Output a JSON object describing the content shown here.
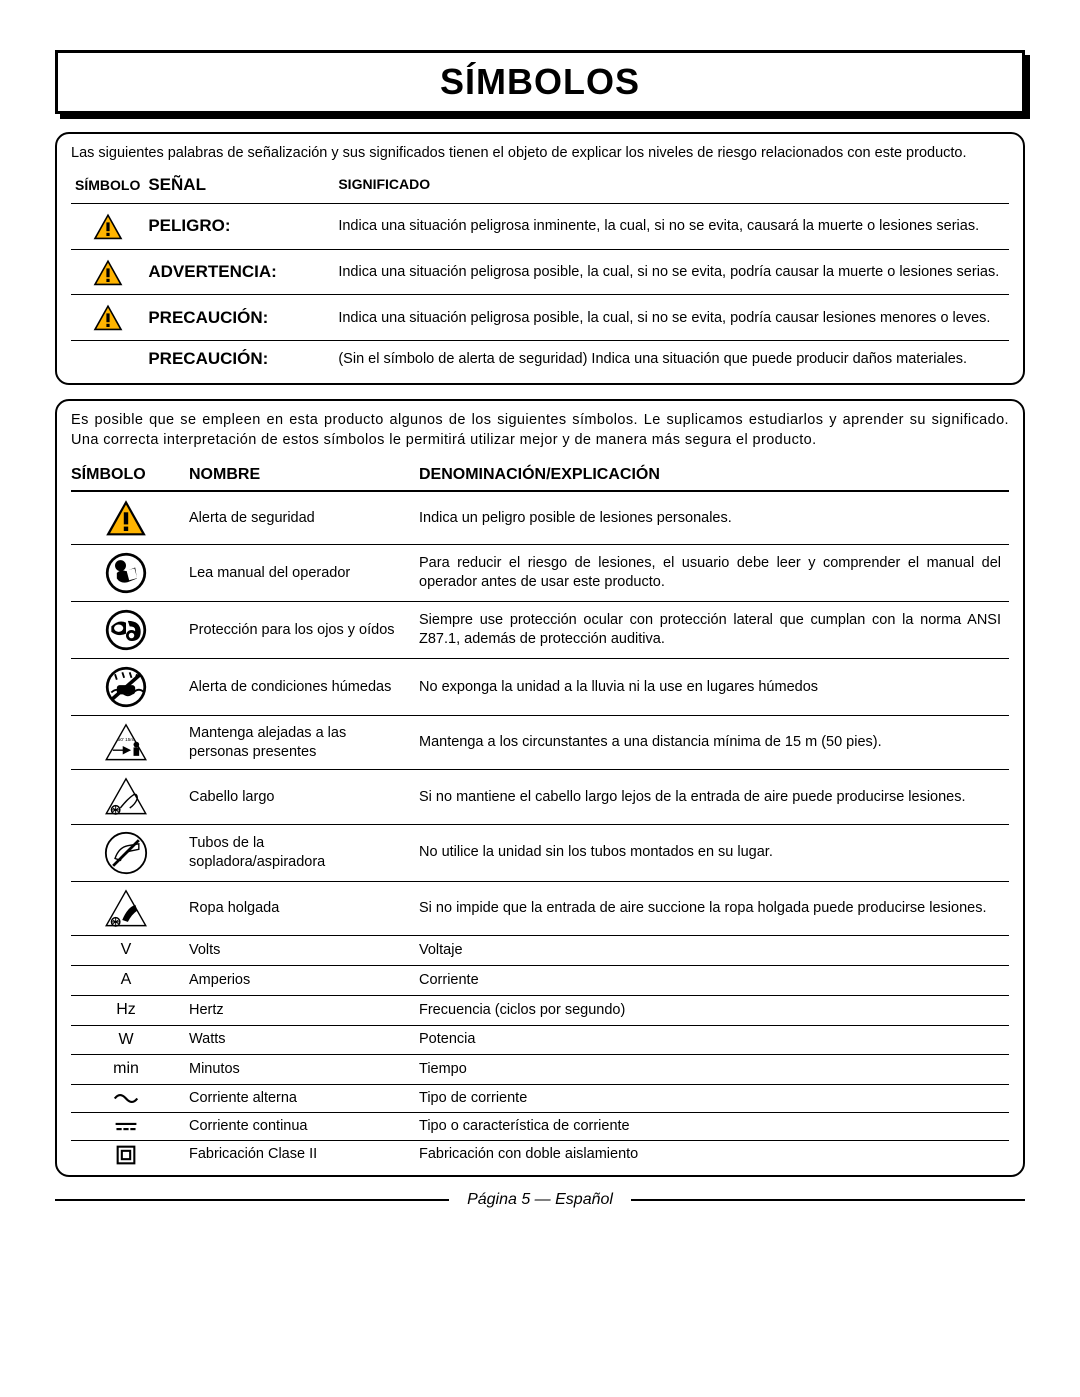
{
  "title": "SÍMBOLOS",
  "signal_box": {
    "intro": "Las siguientes palabras de señalización y sus significados tienen el objeto de explicar los niveles de riesgo relacionados con este producto.",
    "headers": {
      "symbol": "SÍMBOLO",
      "signal": "SEÑAL",
      "meaning": "SIGNIFICADO"
    },
    "rows": [
      {
        "has_icon": true,
        "signal": "PELIGRO:",
        "meaning": "Indica una situación peligrosa inminente, la cual, si no se evita, causará la muerte o lesiones serias."
      },
      {
        "has_icon": true,
        "signal": "ADVERTENCIA:",
        "meaning": "Indica una situación peligrosa posible, la cual, si no se evita, podría causar la muerte o lesiones serias."
      },
      {
        "has_icon": true,
        "signal": "PRECAUCIÓN:",
        "meaning": "Indica una situación peligrosa posible, la cual, si no se evita, podría causar lesiones menores o leves."
      },
      {
        "has_icon": false,
        "signal": "PRECAUCIÓN:",
        "meaning": "(Sin el símbolo de alerta de seguridad) Indica una situación que puede producir daños materiales."
      }
    ]
  },
  "symbols_box": {
    "intro": "Es posible que se empleen en esta producto algunos de los siguientes símbolos. Le suplicamos estudiarlos y aprender su significado. Una correcta interpretación de estos símbolos le permitirá utilizar mejor y de manera más segura el producto.",
    "headers": {
      "symbol": "SÍMBOLO",
      "name": "NOMBRE",
      "explanation": "DENOMINACIÓN/EXPLICACIÓN"
    },
    "rows": [
      {
        "icon": "alert",
        "name": "Alerta de seguridad",
        "explanation": "Indica un peligro posible de lesiones personales."
      },
      {
        "icon": "manual",
        "name": "Lea manual del operador",
        "explanation": "Para reducir el riesgo de lesiones, el usuario debe leer  y comprender el manual del operador antes de usar este producto."
      },
      {
        "icon": "eyeear",
        "name": "Protección para los ojos y oídos",
        "explanation": "Siempre use protección ocular con protección lateral que cumplan con la norma ANSI Z87.1, además de protección auditiva."
      },
      {
        "icon": "wet",
        "name": "Alerta de condiciones húmedas",
        "explanation": "No exponga la unidad a la lluvia ni la use en lugares húmedos"
      },
      {
        "icon": "bystander",
        "name": "Mantenga alejadas a las personas presentes",
        "explanation": "Mantenga a los circunstantes a una distancia mínima de 15 m (50 pies)."
      },
      {
        "icon": "hair",
        "name": "Cabello largo",
        "explanation": "Si no mantiene el cabello largo lejos de la entrada de aire puede producirse lesiones."
      },
      {
        "icon": "tubes",
        "name": "Tubos de la sopladora/aspiradora",
        "explanation": "No utilice la unidad sin los tubos montados en su lugar."
      },
      {
        "icon": "clothes",
        "name": "Ropa holgada",
        "explanation": "Si no impide que la entrada de aire succione la ropa holgada puede producirse lesiones."
      },
      {
        "icon": "text",
        "icon_text": "V",
        "name": "Volts",
        "explanation": "Voltaje",
        "small": true
      },
      {
        "icon": "text",
        "icon_text": "A",
        "name": "Amperios",
        "explanation": "Corriente",
        "small": true
      },
      {
        "icon": "text",
        "icon_text": "Hz",
        "name": "Hertz",
        "explanation": "Frecuencia (ciclos por segundo)",
        "small": true
      },
      {
        "icon": "text",
        "icon_text": "W",
        "name": "Watts",
        "explanation": "Potencia",
        "small": true
      },
      {
        "icon": "text",
        "icon_text": "min",
        "name": "Minutos",
        "explanation": "Tiempo",
        "small": true
      },
      {
        "icon": "ac",
        "name": "Corriente alterna",
        "explanation": "Tipo de corriente",
        "small": true
      },
      {
        "icon": "dc",
        "name": "Corriente continua",
        "explanation": "Tipo o característica de corriente",
        "small": true
      },
      {
        "icon": "class2",
        "name": "Fabricación Clase II",
        "explanation": "Fabricación con doble aislamiento",
        "small": true
      }
    ]
  },
  "footer": "Página 5 — Español"
}
